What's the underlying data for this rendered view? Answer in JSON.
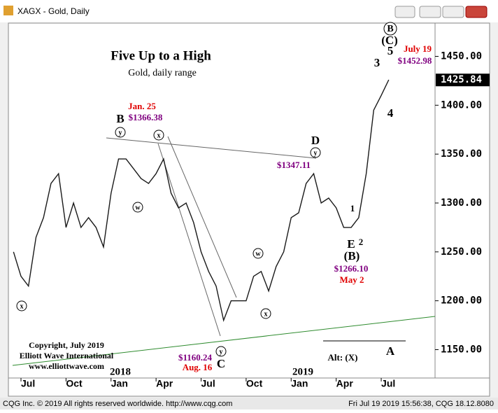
{
  "window": {
    "title": "XAGX - Gold, Daily",
    "footer_left": "CQG Inc. © 2019 All rights reserved worldwide. http://www.cqg.com",
    "footer_right": "Fri Jul 19 2019 15:56:38, CQG 18.12.8080"
  },
  "chart_data": {
    "type": "line",
    "title": "Five Up to a High",
    "subtitle": "Gold, daily range",
    "categories": [
      null,
      "Jul",
      null,
      null,
      null,
      null,
      null,
      "Oct",
      null,
      null,
      null,
      null,
      null,
      "Jan",
      null,
      null,
      null,
      null,
      null,
      "Apr",
      null,
      null,
      null,
      null,
      null,
      "Jul",
      null,
      null,
      null,
      null,
      null,
      "Oct",
      null,
      null,
      null,
      null,
      null,
      "Jan",
      null,
      null,
      null,
      null,
      null,
      "Apr",
      null,
      null,
      null,
      null,
      null,
      "Jul",
      null
    ],
    "values": [
      1250,
      1225,
      1215,
      1265,
      1285,
      1320,
      1330,
      1275,
      1300,
      1275,
      1285,
      1275,
      1255,
      1310,
      1345,
      1345,
      1335,
      1325,
      1320,
      1330,
      1345,
      1310,
      1295,
      1300,
      1280,
      1250,
      1230,
      1215,
      1180,
      1200,
      1200,
      1200,
      1225,
      1230,
      1210,
      1235,
      1250,
      1285,
      1290,
      1320,
      1330,
      1300,
      1305,
      1295,
      1275,
      1275,
      1285,
      1330,
      1395,
      1410,
      1426
    ],
    "color": "#1a1a1a",
    "year_labels": [
      "2018",
      "2019"
    ],
    "last_price": 1425.84,
    "ylim": [
      1121,
      1484
    ],
    "yticks": [
      {
        "value": 1150,
        "label": "1150.00"
      },
      {
        "value": 1200,
        "label": "1200.00"
      },
      {
        "value": 1250,
        "label": "1250.00"
      },
      {
        "value": 1300,
        "label": "1300.00"
      },
      {
        "value": 1350,
        "label": "1350.00"
      },
      {
        "value": 1400,
        "label": "1400.00"
      },
      {
        "value": 1450,
        "label": "1450.00"
      }
    ],
    "annotations": [
      {
        "text": "Jan. 25",
        "color": "#e00000"
      },
      {
        "text": "$1366.38",
        "color": "#800080"
      },
      {
        "text": "B",
        "color": "#000000"
      },
      {
        "text": "y",
        "color": "#000000",
        "circled": true
      },
      {
        "text": "x",
        "color": "#000000",
        "circled": true
      },
      {
        "text": "w",
        "color": "#000000",
        "circled": true
      },
      {
        "text": "D",
        "color": "#000000"
      },
      {
        "text": "$1347.11",
        "color": "#800080"
      },
      {
        "text": "y",
        "color": "#000000",
        "circled": true
      },
      {
        "text": "July 19",
        "color": "#e00000"
      },
      {
        "text": "$1452.98",
        "color": "#800080"
      },
      {
        "text": "3",
        "color": "#000000"
      },
      {
        "text": "5",
        "color": "#000000"
      },
      {
        "text": "(C)",
        "color": "#000000"
      },
      {
        "text": "B",
        "color": "#000000",
        "circled": true
      },
      {
        "text": "4",
        "color": "#000000"
      },
      {
        "text": "1",
        "color": "#000000"
      },
      {
        "text": "2",
        "color": "#000000"
      },
      {
        "text": "E",
        "color": "#000000"
      },
      {
        "text": "(B)",
        "color": "#000000"
      },
      {
        "text": "$1266.10",
        "color": "#800080"
      },
      {
        "text": "May 2",
        "color": "#e00000"
      },
      {
        "text": "y",
        "color": "#000000",
        "circled": true
      },
      {
        "text": "C",
        "color": "#000000"
      },
      {
        "text": "$1160.24",
        "color": "#800080"
      },
      {
        "text": "Aug. 16",
        "color": "#e00000"
      },
      {
        "text": "x",
        "color": "#000000",
        "circled": true
      },
      {
        "text": "w",
        "color": "#000000",
        "circled": true
      },
      {
        "text": "x",
        "color": "#000000",
        "circled": true
      },
      {
        "text": "Alt: (X)",
        "color": "#000000"
      },
      {
        "text": "A",
        "color": "#000000"
      },
      {
        "text": "Copyright, July 2019",
        "color": "#000000"
      },
      {
        "text": "Elliott Wave International",
        "color": "#000000"
      },
      {
        "text": "www.elliottwave.com",
        "color": "#000000"
      }
    ]
  }
}
